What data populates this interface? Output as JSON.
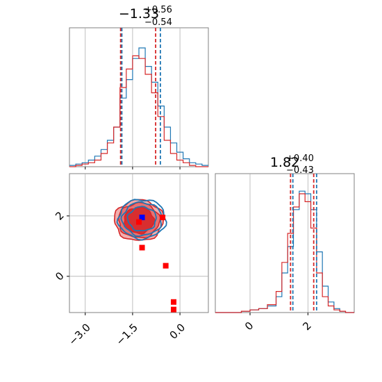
{
  "colors": {
    "blue": "#1f77b4",
    "red": "#d62728",
    "marker_blue": "#0000ff",
    "marker_red": "#ff0000",
    "fill_red_light": "#f1a5a5",
    "fill_red_dark": "#d62728",
    "grid": "#b0b0b0",
    "frame": "#808080"
  },
  "chart_data": [
    {
      "type": "histogram",
      "panel": "marginal-param-1",
      "title": {
        "main": "−1.33",
        "sup": "+0.56",
        "sub": "−0.54"
      },
      "xlim": [
        -3.5,
        0.9
      ],
      "grid": true,
      "series": [
        {
          "color": "blue",
          "bins": [
            [
              -3.5,
              0.01
            ],
            [
              -3.3,
              0.02
            ],
            [
              -3.1,
              0.03
            ],
            [
              -2.9,
              0.05
            ],
            [
              -2.7,
              0.08
            ],
            [
              -2.5,
              0.13
            ],
            [
              -2.3,
              0.2
            ],
            [
              -2.1,
              0.3
            ],
            [
              -1.9,
              0.52
            ],
            [
              -1.7,
              0.66
            ],
            [
              -1.5,
              0.82
            ],
            [
              -1.3,
              0.9
            ],
            [
              -1.1,
              0.76
            ],
            [
              -0.9,
              0.64
            ],
            [
              -0.7,
              0.46
            ],
            [
              -0.5,
              0.3
            ],
            [
              -0.3,
              0.18
            ],
            [
              -0.1,
              0.11
            ],
            [
              0.1,
              0.06
            ],
            [
              0.3,
              0.03
            ],
            [
              0.5,
              0.02
            ],
            [
              0.7,
              0.01
            ]
          ]
        },
        {
          "color": "red",
          "bins": [
            [
              -3.5,
              0.0
            ],
            [
              -3.3,
              0.01
            ],
            [
              -3.1,
              0.02
            ],
            [
              -2.9,
              0.03
            ],
            [
              -2.7,
              0.05
            ],
            [
              -2.5,
              0.1
            ],
            [
              -2.3,
              0.18
            ],
            [
              -2.1,
              0.3
            ],
            [
              -1.9,
              0.6
            ],
            [
              -1.7,
              0.74
            ],
            [
              -1.5,
              0.84
            ],
            [
              -1.3,
              0.82
            ],
            [
              -1.1,
              0.7
            ],
            [
              -0.9,
              0.56
            ],
            [
              -0.7,
              0.38
            ],
            [
              -0.5,
              0.2
            ],
            [
              -0.3,
              0.1
            ],
            [
              -0.1,
              0.05
            ],
            [
              0.1,
              0.03
            ],
            [
              0.3,
              0.01
            ],
            [
              0.5,
              0.0
            ],
            [
              0.7,
              0.0
            ]
          ]
        }
      ],
      "quantile_lines": {
        "blue": [
          -1.84,
          -0.62
        ],
        "red": [
          -1.88,
          -0.77
        ]
      }
    },
    {
      "type": "histogram",
      "panel": "marginal-param-2",
      "title": {
        "main": "1.82",
        "sup": "+0.40",
        "sub": "−0.43"
      },
      "xlim": [
        -1.2,
        3.6
      ],
      "xticks": [
        0,
        2
      ],
      "grid": true,
      "series": [
        {
          "color": "blue",
          "bins": [
            [
              -1.2,
              0.0
            ],
            [
              -0.9,
              0.0
            ],
            [
              -0.6,
              0.0
            ],
            [
              -0.3,
              0.01
            ],
            [
              0.0,
              0.02
            ],
            [
              0.3,
              0.03
            ],
            [
              0.6,
              0.05
            ],
            [
              0.9,
              0.12
            ],
            [
              1.1,
              0.3
            ],
            [
              1.3,
              0.5
            ],
            [
              1.5,
              0.78
            ],
            [
              1.7,
              0.92
            ],
            [
              1.9,
              0.9
            ],
            [
              2.1,
              0.78
            ],
            [
              2.3,
              0.46
            ],
            [
              2.5,
              0.2
            ],
            [
              2.7,
              0.08
            ],
            [
              2.9,
              0.03
            ],
            [
              3.1,
              0.01
            ],
            [
              3.3,
              0.0
            ]
          ]
        },
        {
          "color": "red",
          "bins": [
            [
              -1.2,
              0.0
            ],
            [
              -0.9,
              0.0
            ],
            [
              -0.6,
              0.0
            ],
            [
              -0.3,
              0.01
            ],
            [
              0.0,
              0.02
            ],
            [
              0.3,
              0.03
            ],
            [
              0.6,
              0.06
            ],
            [
              0.9,
              0.16
            ],
            [
              1.1,
              0.38
            ],
            [
              1.3,
              0.6
            ],
            [
              1.5,
              0.8
            ],
            [
              1.7,
              0.9
            ],
            [
              1.9,
              0.84
            ],
            [
              2.1,
              0.64
            ],
            [
              2.3,
              0.3
            ],
            [
              2.5,
              0.12
            ],
            [
              2.7,
              0.05
            ],
            [
              2.9,
              0.02
            ],
            [
              3.1,
              0.01
            ],
            [
              3.3,
              0.0
            ]
          ]
        }
      ],
      "quantile_lines": {
        "blue": [
          1.48,
          2.3
        ],
        "red": [
          1.4,
          2.2
        ]
      }
    },
    {
      "type": "contour",
      "panel": "joint-param-1-param-2",
      "xlim": [
        -3.5,
        0.9
      ],
      "ylim": [
        -1.2,
        3.4
      ],
      "xticks": [
        -3.0,
        -1.5,
        0.0
      ],
      "xtick_labels": [
        "−3.0",
        "−1.5",
        "0.0"
      ],
      "yticks": [
        0,
        2
      ],
      "yticks_labels": [
        "0",
        "2"
      ],
      "grid": true,
      "contours": {
        "red": {
          "center": [
            -1.3,
            1.85
          ],
          "radii": [
            [
              0.95,
              0.85
            ],
            [
              1.3,
              1.15
            ],
            [
              1.55,
              1.35
            ]
          ]
        },
        "blue": {
          "center": [
            -1.2,
            1.9
          ],
          "radii": [
            [
              0.9,
              0.8
            ],
            [
              1.25,
              1.1
            ],
            [
              1.5,
              1.3
            ]
          ]
        }
      },
      "markers": [
        {
          "color": "marker_blue",
          "x": -1.2,
          "y": 1.95
        },
        {
          "color": "marker_red",
          "x": -1.3,
          "y": 1.8
        },
        {
          "color": "marker_red",
          "x": -0.55,
          "y": 1.95
        },
        {
          "color": "marker_red",
          "x": -1.2,
          "y": 0.95
        },
        {
          "color": "marker_red",
          "x": -0.45,
          "y": 0.35
        },
        {
          "color": "marker_red",
          "x": -0.2,
          "y": -0.85
        },
        {
          "color": "marker_red",
          "x": -0.2,
          "y": -1.1
        }
      ]
    }
  ]
}
